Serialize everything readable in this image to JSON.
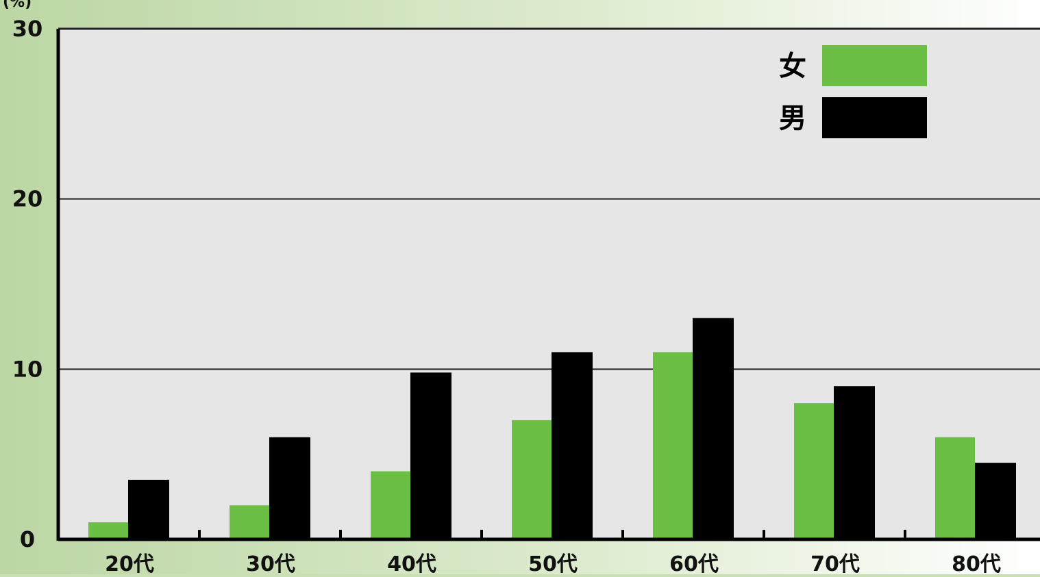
{
  "chart_data": {
    "type": "bar",
    "title": "",
    "xlabel": "",
    "ylabel": "",
    "y_unit": "(%)",
    "ylim": [
      0,
      30
    ],
    "yticks": [
      0,
      10,
      20,
      30
    ],
    "grid": true,
    "legend_position": "top-right",
    "categories": [
      "20代",
      "30代",
      "40代",
      "50代",
      "60代",
      "70代",
      "80代"
    ],
    "series": [
      {
        "name": "女",
        "color": "#6cbf45",
        "values": [
          1,
          2,
          4,
          7,
          11,
          8,
          6
        ]
      },
      {
        "name": "男",
        "color": "#000000",
        "values": [
          3.5,
          6,
          9.8,
          11,
          13,
          9,
          4.5
        ]
      }
    ]
  }
}
